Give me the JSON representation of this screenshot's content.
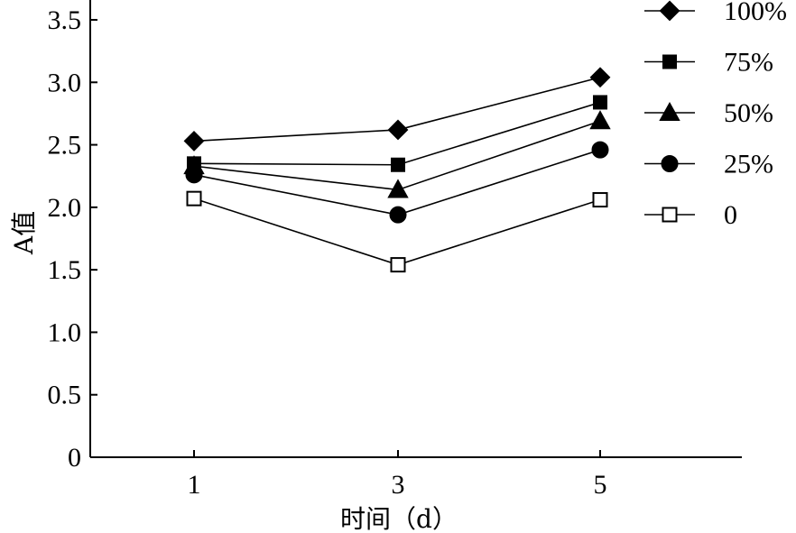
{
  "chart_data": {
    "type": "line",
    "x": [
      1,
      3,
      5
    ],
    "xlabel": "时间（d）",
    "ylabel": "A值",
    "ylim": [
      0,
      3.5
    ],
    "yticks": [
      "0",
      "0.5",
      "1.0",
      "1.5",
      "2.0",
      "2.5",
      "3.0",
      "3.5"
    ],
    "xticks": [
      "1",
      "3",
      "5"
    ],
    "legend_position": "top-right",
    "grid": false,
    "series": [
      {
        "name": "100%",
        "marker": "diamond",
        "filled": true,
        "values": [
          2.53,
          2.62,
          3.04
        ]
      },
      {
        "name": "75%",
        "marker": "square",
        "filled": true,
        "values": [
          2.35,
          2.34,
          2.84
        ]
      },
      {
        "name": "50%",
        "marker": "triangle",
        "filled": true,
        "values": [
          2.33,
          2.14,
          2.69
        ]
      },
      {
        "name": "25%",
        "marker": "circle",
        "filled": true,
        "values": [
          2.26,
          1.94,
          2.46
        ]
      },
      {
        "name": "0",
        "marker": "square",
        "filled": false,
        "values": [
          2.07,
          1.54,
          2.06
        ]
      }
    ]
  }
}
